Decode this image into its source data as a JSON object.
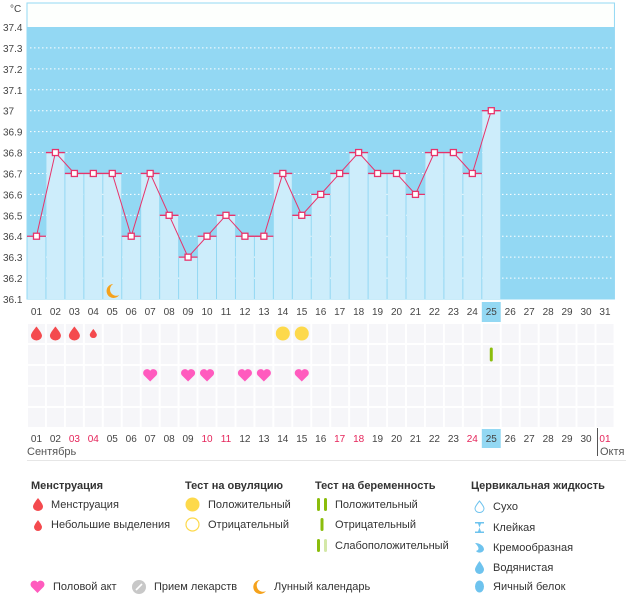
{
  "chart_data": {
    "type": "bar",
    "title": "",
    "ylabel": "°C",
    "xlabel": "",
    "ylim": [
      36.1,
      37.4
    ],
    "yticks": [
      "37.4",
      "37.3",
      "37.2",
      "37.1",
      "37",
      "36.9",
      "36.8",
      "36.7",
      "36.6",
      "36.5",
      "36.4",
      "36.3",
      "36.2",
      "36.1"
    ],
    "ytick_values": [
      37.4,
      37.3,
      37.2,
      37.1,
      37.0,
      36.9,
      36.8,
      36.7,
      36.6,
      36.5,
      36.4,
      36.3,
      36.2,
      36.1
    ],
    "categories": [
      "01",
      "02",
      "03",
      "04",
      "05",
      "06",
      "07",
      "08",
      "09",
      "10",
      "11",
      "12",
      "13",
      "14",
      "15",
      "16",
      "17",
      "18",
      "19",
      "20",
      "21",
      "22",
      "23",
      "24",
      "25",
      "26",
      "27",
      "28",
      "29",
      "30",
      "31"
    ],
    "series": [
      {
        "name": "Базальная температура",
        "color": "#e8336b",
        "values": [
          36.4,
          36.8,
          36.7,
          36.7,
          36.7,
          36.4,
          36.7,
          36.5,
          36.3,
          36.4,
          36.5,
          36.4,
          36.4,
          36.7,
          36.5,
          36.6,
          36.7,
          36.8,
          36.7,
          36.7,
          36.6,
          36.8,
          36.8,
          36.7,
          37.0,
          null,
          null,
          null,
          null,
          null,
          null
        ]
      }
    ],
    "highlight_day": "25",
    "grid": true,
    "colors": {
      "plot_bg": "#93d8f3",
      "bar_fill": "#cdedfb",
      "line": "#e8336b",
      "highlight": "#93d8f3"
    }
  },
  "moon_day": "05",
  "event_rows": {
    "menstruation": [
      {
        "day": "01",
        "type": "heavy"
      },
      {
        "day": "02",
        "type": "heavy"
      },
      {
        "day": "03",
        "type": "heavy"
      },
      {
        "day": "04",
        "type": "light"
      }
    ],
    "ovulation_test": [
      {
        "day": "14",
        "type": "positive"
      },
      {
        "day": "15",
        "type": "positive"
      }
    ],
    "pregnancy_test": [
      {
        "day": "25",
        "type": "negative"
      }
    ],
    "intercourse": [
      "07",
      "09",
      "10",
      "12",
      "13",
      "15"
    ]
  },
  "calendar_days": [
    {
      "label": "01",
      "weekend": false
    },
    {
      "label": "02",
      "weekend": false
    },
    {
      "label": "03",
      "weekend": true
    },
    {
      "label": "04",
      "weekend": true
    },
    {
      "label": "05",
      "weekend": false
    },
    {
      "label": "06",
      "weekend": false
    },
    {
      "label": "07",
      "weekend": false
    },
    {
      "label": "08",
      "weekend": false
    },
    {
      "label": "09",
      "weekend": false
    },
    {
      "label": "10",
      "weekend": true
    },
    {
      "label": "11",
      "weekend": true
    },
    {
      "label": "12",
      "weekend": false
    },
    {
      "label": "13",
      "weekend": false
    },
    {
      "label": "14",
      "weekend": false
    },
    {
      "label": "15",
      "weekend": false
    },
    {
      "label": "16",
      "weekend": false
    },
    {
      "label": "17",
      "weekend": true
    },
    {
      "label": "18",
      "weekend": true
    },
    {
      "label": "19",
      "weekend": false
    },
    {
      "label": "20",
      "weekend": false
    },
    {
      "label": "21",
      "weekend": false
    },
    {
      "label": "22",
      "weekend": false
    },
    {
      "label": "23",
      "weekend": false
    },
    {
      "label": "24",
      "weekend": true
    },
    {
      "label": "25",
      "weekend": false,
      "today": true
    },
    {
      "label": "26",
      "weekend": false
    },
    {
      "label": "27",
      "weekend": false
    },
    {
      "label": "28",
      "weekend": false
    },
    {
      "label": "29",
      "weekend": false
    },
    {
      "label": "30",
      "weekend": false
    },
    {
      "label": "01",
      "weekend": true,
      "next_month": true
    }
  ],
  "months": {
    "current": "Сентябрь",
    "next": "Октя"
  },
  "legend": {
    "menstruation": {
      "title": "Менструация",
      "items": [
        {
          "icon": "blood-drop-icon",
          "label": "Менструация"
        },
        {
          "icon": "small-blood-drop-icon",
          "label": "Небольшие выделения"
        }
      ]
    },
    "ovulation": {
      "title": "Тест на овуляцию",
      "items": [
        {
          "icon": "filled-circle-icon",
          "label": "Положительный"
        },
        {
          "icon": "empty-circle-icon",
          "label": "Отрицательный"
        }
      ]
    },
    "pregnancy": {
      "title": "Тест на беременность",
      "items": [
        {
          "icon": "double-bar-icon",
          "label": "Положительный"
        },
        {
          "icon": "single-bar-icon",
          "label": "Отрицательный"
        },
        {
          "icon": "faint-double-bar-icon",
          "label": "Слабоположительный"
        }
      ]
    },
    "cervical": {
      "title": "Цервикальная жидкость",
      "items": [
        {
          "icon": "dry-drop-icon",
          "label": "Сухо"
        },
        {
          "icon": "sticky-icon",
          "label": "Клейкая"
        },
        {
          "icon": "creamy-icon",
          "label": "Кремообразная"
        },
        {
          "icon": "watery-drop-icon",
          "label": "Водянистая"
        },
        {
          "icon": "egg-white-icon",
          "label": "Яичный белок"
        }
      ]
    },
    "bottom": [
      {
        "icon": "heart-icon",
        "label": "Половой акт"
      },
      {
        "icon": "pill-icon",
        "label": "Прием лекарств"
      },
      {
        "icon": "moon-icon",
        "label": "Лунный календарь"
      }
    ]
  }
}
